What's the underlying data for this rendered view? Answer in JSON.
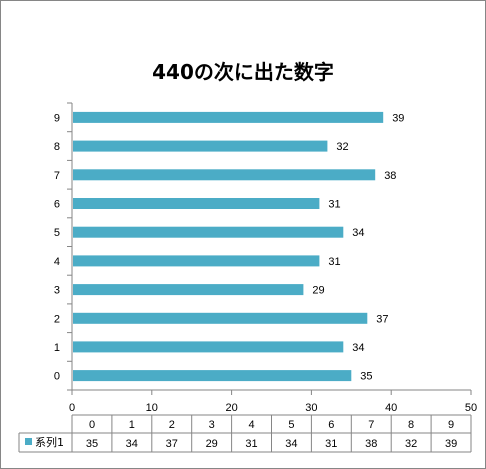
{
  "chart_data": {
    "type": "bar",
    "orientation": "horizontal",
    "title": "440の次に出た数字",
    "categories": [
      "0",
      "1",
      "2",
      "3",
      "4",
      "5",
      "6",
      "7",
      "8",
      "9"
    ],
    "series": [
      {
        "name": "系列1",
        "values": [
          35,
          34,
          37,
          29,
          31,
          34,
          31,
          38,
          32,
          39
        ]
      }
    ],
    "xlim": [
      0,
      50
    ],
    "x_ticks": [
      "0",
      "10",
      "20",
      "30",
      "40",
      "50"
    ],
    "grid": false,
    "data_labels": true,
    "data_table": true,
    "colors": {
      "series": "#4BACC6",
      "axis": "#868686"
    }
  }
}
